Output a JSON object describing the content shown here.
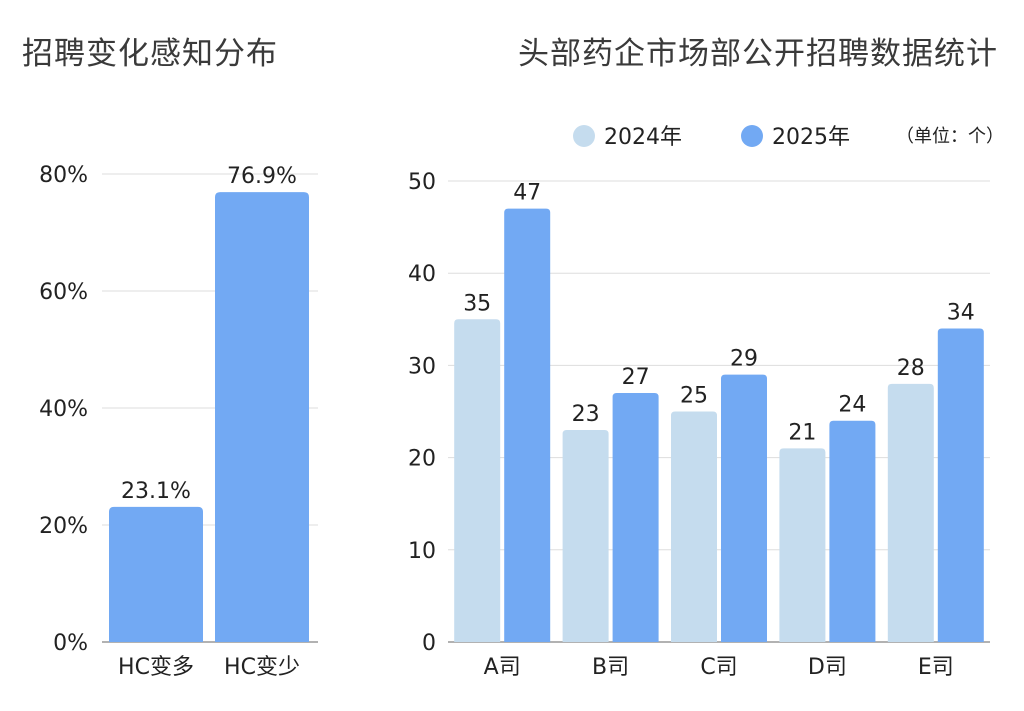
{
  "colors": {
    "series_2024": "#c5dcee",
    "series_2025": "#72a9f3",
    "grid": "#dddddd",
    "axis": "#999999"
  },
  "chart_data": [
    {
      "type": "bar",
      "title": "招聘变化感知分布",
      "categories": [
        "HC变多",
        "HC变少"
      ],
      "values": [
        23.1,
        76.9
      ],
      "value_labels": [
        "23.1%",
        "76.9%"
      ],
      "y_ticks": [
        "0%",
        "20%",
        "40%",
        "60%",
        "80%"
      ],
      "ylim": [
        0,
        80
      ],
      "grid": true
    },
    {
      "type": "bar",
      "title": "头部药企市场部公开招聘数据统计",
      "unit_note": "（单位：个）",
      "categories": [
        "A司",
        "B司",
        "C司",
        "D司",
        "E司"
      ],
      "series": [
        {
          "name": "2024年",
          "values": [
            35,
            23,
            25,
            21,
            28
          ]
        },
        {
          "name": "2025年",
          "values": [
            47,
            27,
            29,
            24,
            34
          ]
        }
      ],
      "y_ticks": [
        "0",
        "10",
        "20",
        "30",
        "40",
        "50"
      ],
      "ylim": [
        0,
        50
      ],
      "legend": "top",
      "grid": true
    }
  ]
}
